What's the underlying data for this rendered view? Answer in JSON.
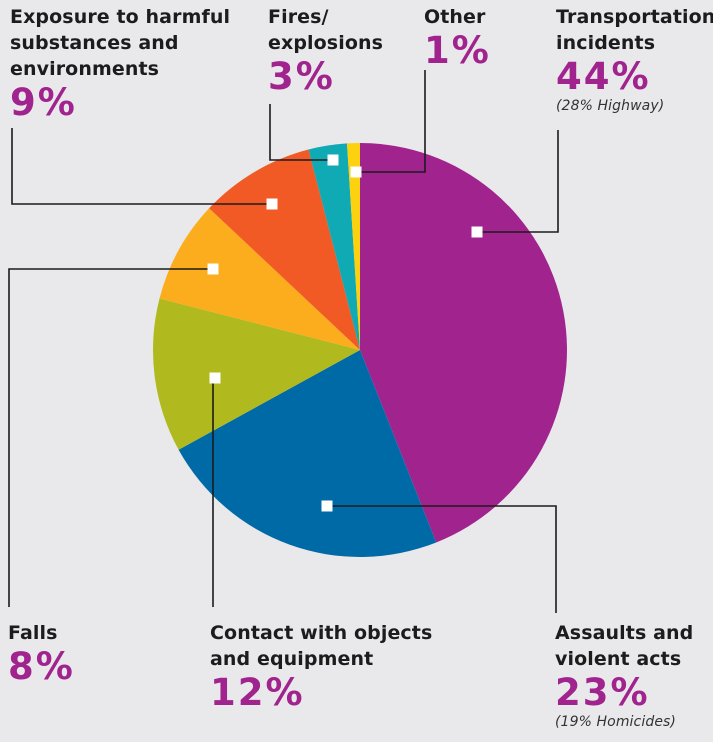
{
  "chart_data": {
    "type": "pie",
    "title": "",
    "slices": [
      {
        "label_lines": [
          "Transportation",
          "incidents"
        ],
        "value": 44,
        "pct_text": "44%",
        "note": "(28% Highway)",
        "color": "#a0238e"
      },
      {
        "label_lines": [
          "Assaults and",
          "violent acts"
        ],
        "value": 23,
        "pct_text": "23%",
        "note": "(19% Homicides)",
        "color": "#006aa6"
      },
      {
        "label_lines": [
          "Contact with objects",
          "and equipment"
        ],
        "value": 12,
        "pct_text": "12%",
        "note": "",
        "color": "#b0ba1e"
      },
      {
        "label_lines": [
          "Falls"
        ],
        "value": 8,
        "pct_text": "8%",
        "note": "",
        "color": "#fbad1d"
      },
      {
        "label_lines": [
          "Exposure to harmful",
          "substances and",
          "environments"
        ],
        "value": 9,
        "pct_text": "9%",
        "note": "",
        "color": "#f15a24"
      },
      {
        "label_lines": [
          "Fires/",
          "explosions"
        ],
        "value": 3,
        "pct_text": "3%",
        "note": "",
        "color": "#10aab5"
      },
      {
        "label_lines": [
          "Other"
        ],
        "value": 1,
        "pct_text": "1%",
        "note": "",
        "color": "#fcd10e"
      }
    ],
    "pct_color": "#a0238e",
    "connector_color": "#1c1c1c",
    "marker_color": "#ffffff"
  }
}
